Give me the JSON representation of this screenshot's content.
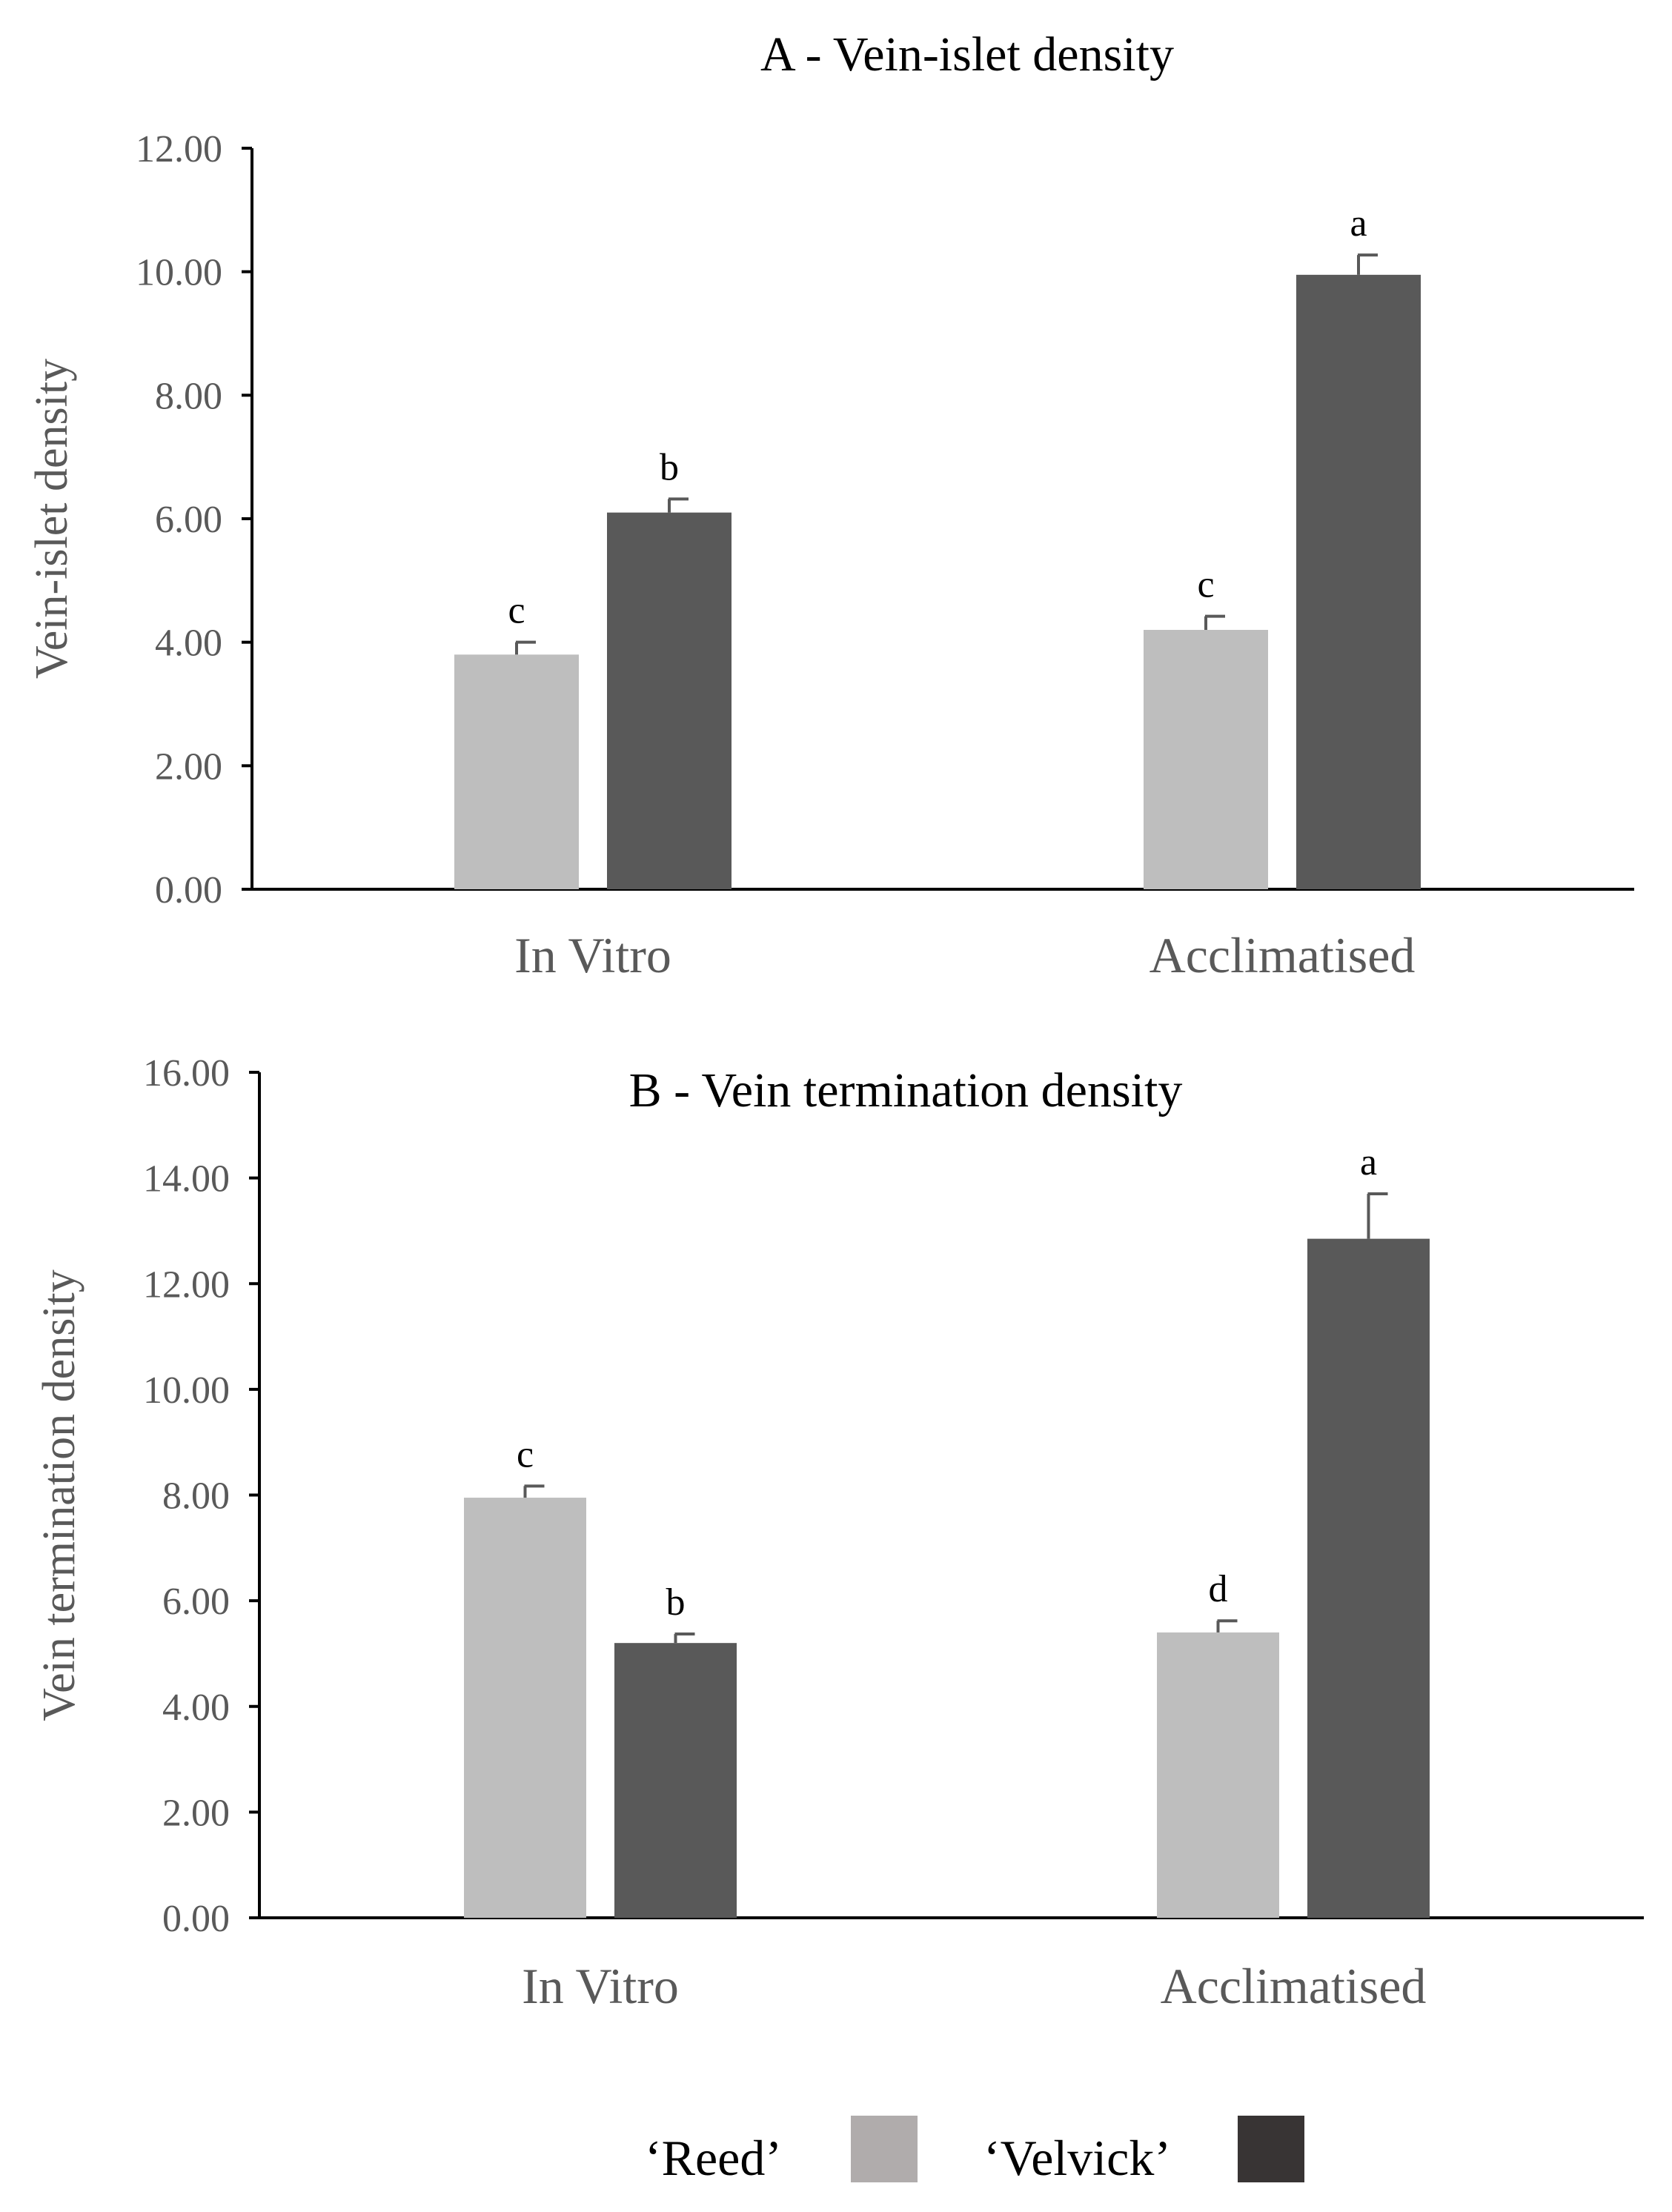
{
  "chart_data": [
    {
      "type": "bar",
      "title": "A - Vein-islet density",
      "xlabel": "",
      "ylabel": "Vein-islet density",
      "categories": [
        "In Vitro",
        "Acclimatised"
      ],
      "ylim": [
        0,
        12
      ],
      "yticks": [
        "0.00",
        "2.00",
        "4.00",
        "6.00",
        "8.00",
        "10.00",
        "12.00"
      ],
      "series": [
        {
          "name": "'Reed'",
          "values": [
            3.8,
            4.2
          ],
          "errors": [
            0.2,
            0.22
          ],
          "letters": [
            "c",
            "c"
          ]
        },
        {
          "name": "'Velvick'",
          "values": [
            6.1,
            9.95
          ],
          "errors": [
            0.22,
            0.32
          ],
          "letters": [
            "b",
            "a"
          ]
        }
      ]
    },
    {
      "type": "bar",
      "title": "B - Vein termination density",
      "xlabel": "",
      "ylabel": "Vein termination density",
      "categories": [
        "In Vitro",
        "Acclimatised"
      ],
      "ylim": [
        0,
        16
      ],
      "yticks": [
        "0.00",
        "2.00",
        "4.00",
        "6.00",
        "8.00",
        "10.00",
        "12.00",
        "14.00",
        "16.00"
      ],
      "series": [
        {
          "name": "'Reed'",
          "values": [
            7.95,
            5.4
          ],
          "errors": [
            0.22,
            0.22
          ],
          "letters": [
            "c",
            "d"
          ]
        },
        {
          "name": "'Velvick'",
          "values": [
            5.2,
            12.85
          ],
          "errors": [
            0.17,
            0.85
          ],
          "letters": [
            "b",
            "a"
          ]
        }
      ]
    }
  ],
  "legend": {
    "items": [
      {
        "label": "‘Reed’",
        "color": "#b0acac"
      },
      {
        "label": "‘Velvick’",
        "color": "#383434"
      }
    ]
  },
  "colors": {
    "reed_bar": "#bebebe",
    "velvick_bar": "#595959",
    "axis": "#000000",
    "text": "#595959",
    "title_text": "#000000"
  }
}
